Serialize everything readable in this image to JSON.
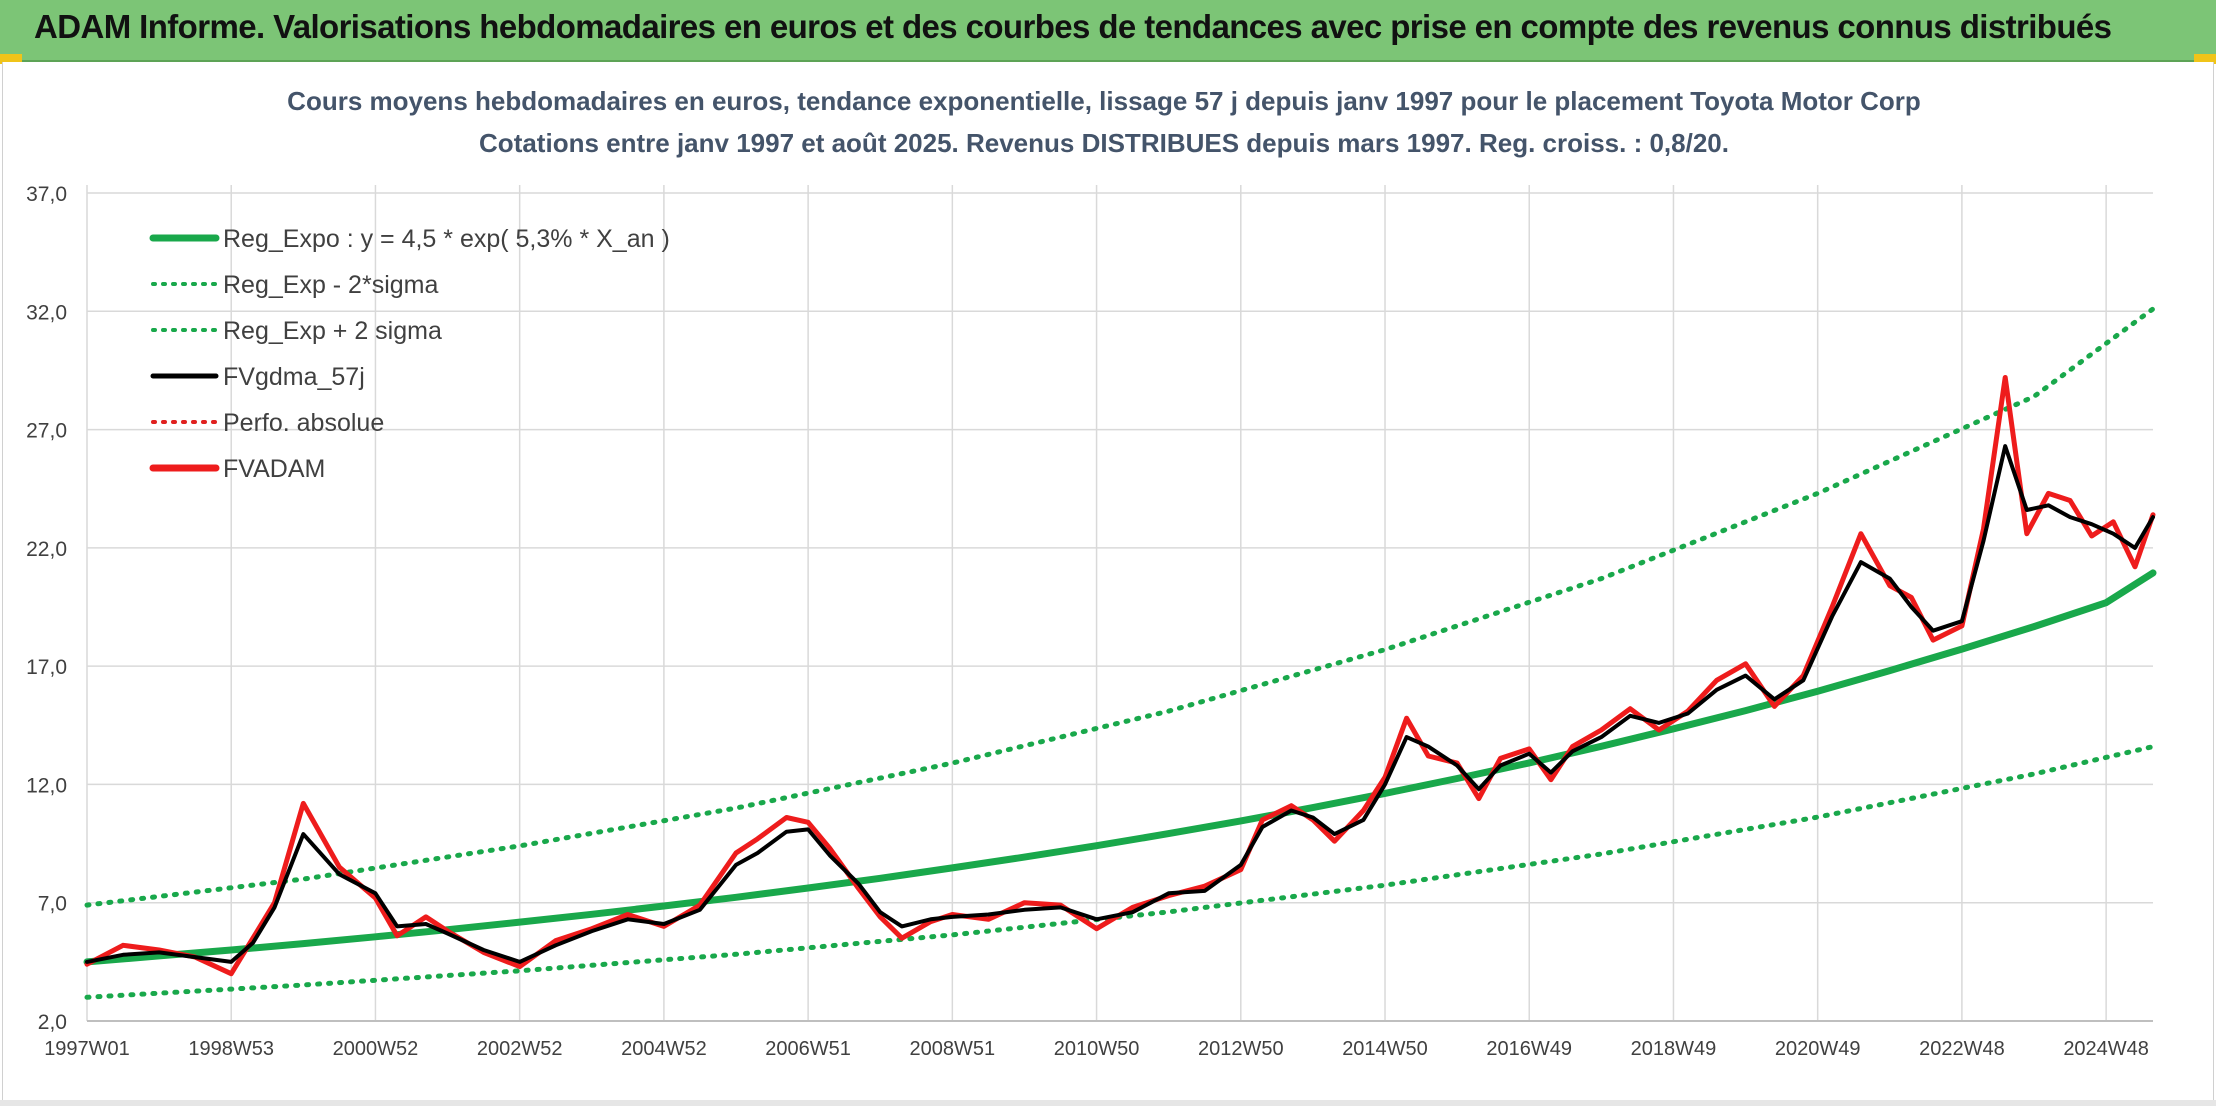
{
  "header": {
    "title": "ADAM Informe. Valorisations hebdomadaires en euros et des courbes de tendances avec prise en compte des revenus connus distribués"
  },
  "chart_data": {
    "type": "line",
    "title": "Cours moyens hebdomadaires en euros, tendance exponentielle, lissage 57 j depuis janv 1997 pour le placement Toyota Motor Corp",
    "subtitle": "Cotations entre janv 1997 et août 2025. Revenus DISTRIBUES depuis mars 1997. Reg. croiss. : 0,8/20.",
    "xlabel": "",
    "ylabel": "",
    "ylim": [
      2.0,
      37.0
    ],
    "xlim": [
      1997.0,
      2025.65
    ],
    "y_ticks": [
      "2,0",
      "7,0",
      "12,0",
      "17,0",
      "22,0",
      "27,0",
      "32,0",
      "37,0"
    ],
    "y_tick_values": [
      2,
      7,
      12,
      17,
      22,
      27,
      32,
      37
    ],
    "x_tick_labels": [
      "1997W01",
      "1998W53",
      "2000W52",
      "2002W52",
      "2004W52",
      "2006W51",
      "2008W51",
      "2010W50",
      "2012W50",
      "2014W50",
      "2016W49",
      "2018W49",
      "2020W49",
      "2022W48",
      "2024W48"
    ],
    "x_tick_years": [
      1997.0,
      1999.0,
      2001.0,
      2003.0,
      2005.0,
      2007.0,
      2009.0,
      2011.0,
      2013.0,
      2015.0,
      2017.0,
      2019.0,
      2021.0,
      2023.0,
      2025.0
    ],
    "grid": true,
    "legend_position": "top-left",
    "legend": [
      {
        "label": "Reg_Expo : y = 4,5 * exp( 5,3% *  X_an )",
        "color": "#19a84b",
        "style": "solid-thick"
      },
      {
        "label": "Reg_Exp - 2*sigma",
        "color": "#19a84b",
        "style": "dotted"
      },
      {
        "label": "Reg_Exp + 2 sigma",
        "color": "#19a84b",
        "style": "dotted"
      },
      {
        "label": "FVgdma_57j",
        "color": "#000000",
        "style": "solid"
      },
      {
        "label": "Perfo. absolue",
        "color": "#e0201f",
        "style": "dotted"
      },
      {
        "label": "FVADAM",
        "color": "#ee1c1c",
        "style": "solid-thick"
      }
    ],
    "series": [
      {
        "name": "Reg_Expo : y = 4,5 * exp( 5,3% *  X_an )",
        "kind": "regression",
        "x": [
          1997,
          1998,
          1999,
          2000,
          2001,
          2002,
          2003,
          2004,
          2005,
          2006,
          2007,
          2008,
          2009,
          2010,
          2011,
          2012,
          2013,
          2014,
          2015,
          2016,
          2017,
          2018,
          2019,
          2020,
          2021,
          2022,
          2023,
          2024,
          2025,
          2025.65
        ],
        "values": [
          4.5,
          4.75,
          5.0,
          5.27,
          5.56,
          5.86,
          6.18,
          6.51,
          6.86,
          7.23,
          7.62,
          8.03,
          8.47,
          8.93,
          9.41,
          9.92,
          10.46,
          11.02,
          11.62,
          12.25,
          12.91,
          13.61,
          14.35,
          15.12,
          15.94,
          16.81,
          17.72,
          18.67,
          19.68,
          20.94
        ]
      },
      {
        "name": "Reg_Exp - 2*sigma",
        "kind": "lower_band",
        "x": [
          1997,
          2000,
          2003,
          2006,
          2009,
          2012,
          2015,
          2018,
          2021,
          2024,
          2025.65
        ],
        "values": [
          3.0,
          3.52,
          4.12,
          4.82,
          5.64,
          6.61,
          7.74,
          9.06,
          10.62,
          12.44,
          13.6
        ]
      },
      {
        "name": "Reg_Exp + 2 sigma",
        "kind": "upper_band",
        "x": [
          1997,
          2000,
          2003,
          2006,
          2009,
          2012,
          2015,
          2018,
          2021,
          2024,
          2025.65
        ],
        "values": [
          6.9,
          8.0,
          9.4,
          11.0,
          12.9,
          15.1,
          17.7,
          20.7,
          24.3,
          28.4,
          32.1
        ]
      },
      {
        "name": "FVgdma_57j",
        "kind": "smoothed",
        "x": [
          1997.0,
          1997.5,
          1998.0,
          1998.5,
          1999.0,
          1999.3,
          1999.6,
          2000.0,
          2000.5,
          2001.0,
          2001.3,
          2001.7,
          2002.0,
          2002.5,
          2003.0,
          2003.5,
          2004.0,
          2004.5,
          2005.0,
          2005.5,
          2006.0,
          2006.3,
          2006.7,
          2007.0,
          2007.3,
          2007.7,
          2008.0,
          2008.3,
          2008.7,
          2009.0,
          2009.5,
          2010.0,
          2010.5,
          2011.0,
          2011.5,
          2012.0,
          2012.5,
          2013.0,
          2013.3,
          2013.7,
          2014.0,
          2014.3,
          2014.7,
          2015.0,
          2015.3,
          2015.6,
          2016.0,
          2016.3,
          2016.6,
          2017.0,
          2017.3,
          2017.6,
          2018.0,
          2018.4,
          2018.8,
          2019.2,
          2019.6,
          2020.0,
          2020.4,
          2020.8,
          2021.2,
          2021.6,
          2022.0,
          2022.3,
          2022.6,
          2023.0,
          2023.3,
          2023.6,
          2023.9,
          2024.2,
          2024.5,
          2024.8,
          2025.1,
          2025.4,
          2025.65
        ],
        "values": [
          4.5,
          4.8,
          4.9,
          4.7,
          4.5,
          5.3,
          6.8,
          9.9,
          8.2,
          7.4,
          6.0,
          6.1,
          5.7,
          5.0,
          4.5,
          5.2,
          5.8,
          6.3,
          6.1,
          6.7,
          8.6,
          9.1,
          10.0,
          10.1,
          9.0,
          7.8,
          6.6,
          6.0,
          6.3,
          6.4,
          6.5,
          6.7,
          6.8,
          6.3,
          6.6,
          7.4,
          7.5,
          8.6,
          10.2,
          10.9,
          10.6,
          9.9,
          10.5,
          12.0,
          14.0,
          13.6,
          12.8,
          11.8,
          12.8,
          13.3,
          12.5,
          13.4,
          14.0,
          14.9,
          14.6,
          15.0,
          16.0,
          16.6,
          15.6,
          16.4,
          19.1,
          21.4,
          20.7,
          19.5,
          18.5,
          18.9,
          22.3,
          26.3,
          23.6,
          23.8,
          23.3,
          23.0,
          22.6,
          22.0,
          23.3
        ]
      },
      {
        "name": "FVADAM",
        "kind": "weekly",
        "x": [
          1997.0,
          1997.5,
          1998.0,
          1998.5,
          1999.0,
          1999.3,
          1999.6,
          2000.0,
          2000.5,
          2001.0,
          2001.3,
          2001.7,
          2002.0,
          2002.5,
          2003.0,
          2003.5,
          2004.0,
          2004.5,
          2005.0,
          2005.5,
          2006.0,
          2006.3,
          2006.7,
          2007.0,
          2007.3,
          2007.7,
          2008.0,
          2008.3,
          2008.7,
          2009.0,
          2009.5,
          2010.0,
          2010.5,
          2011.0,
          2011.5,
          2012.0,
          2012.5,
          2013.0,
          2013.3,
          2013.7,
          2014.0,
          2014.3,
          2014.7,
          2015.0,
          2015.3,
          2015.6,
          2016.0,
          2016.3,
          2016.6,
          2017.0,
          2017.3,
          2017.6,
          2018.0,
          2018.4,
          2018.8,
          2019.2,
          2019.6,
          2020.0,
          2020.4,
          2020.8,
          2021.2,
          2021.6,
          2022.0,
          2022.3,
          2022.6,
          2023.0,
          2023.3,
          2023.6,
          2023.9,
          2024.2,
          2024.5,
          2024.8,
          2025.1,
          2025.4,
          2025.65
        ],
        "values": [
          4.4,
          5.2,
          5.0,
          4.7,
          4.0,
          5.5,
          7.0,
          11.2,
          8.5,
          7.2,
          5.6,
          6.4,
          5.8,
          4.9,
          4.3,
          5.4,
          5.9,
          6.5,
          6.0,
          6.9,
          9.1,
          9.7,
          10.6,
          10.4,
          9.3,
          7.6,
          6.4,
          5.5,
          6.2,
          6.5,
          6.3,
          7.0,
          6.9,
          5.9,
          6.8,
          7.3,
          7.7,
          8.4,
          10.5,
          11.1,
          10.5,
          9.6,
          10.9,
          12.3,
          14.8,
          13.2,
          12.9,
          11.4,
          13.1,
          13.5,
          12.2,
          13.6,
          14.3,
          15.2,
          14.3,
          15.1,
          16.4,
          17.1,
          15.3,
          16.6,
          19.5,
          22.6,
          20.4,
          19.9,
          18.1,
          18.7,
          22.8,
          29.2,
          22.6,
          24.3,
          24.0,
          22.5,
          23.1,
          21.2,
          23.4
        ]
      }
    ]
  }
}
